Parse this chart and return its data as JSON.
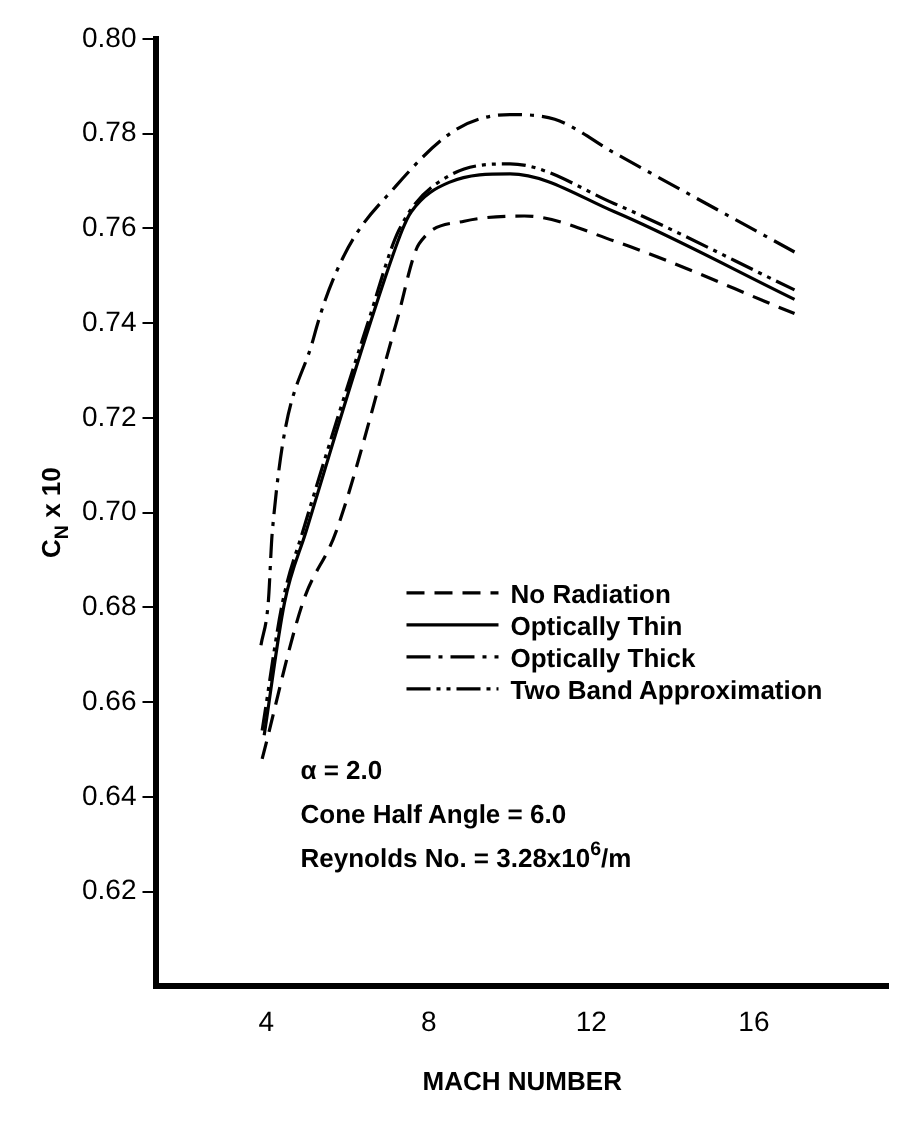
{
  "chart_data": {
    "type": "line",
    "xlabel": "MACH NUMBER",
    "ylabel": "C$_{N}$ x 10",
    "xlim": [
      1.3,
      19.3
    ],
    "xticks": [
      4,
      8,
      12,
      16
    ],
    "ylim": [
      0.6,
      0.8
    ],
    "yticks": [
      0.62,
      0.64,
      0.66,
      0.68,
      {
        "value": 0.7,
        "label": "0.70"
      },
      0.72,
      0.74,
      0.76,
      0.78,
      {
        "value": 0.8,
        "label": "0.80"
      }
    ],
    "grid": false,
    "legend": "bottom right",
    "marker": "none",
    "series": [
      {
        "name": "No Radiation",
        "color": "#000000",
        "line_style": "dashed",
        "x": [
          3.9,
          4.9,
          5.72,
          7.2,
          7.76,
          8.87,
          10.35,
          12.57,
          17.0
        ],
        "values": [
          0.648,
          0.681,
          0.696,
          0.74,
          0.7567,
          0.7615,
          0.7626,
          0.7573,
          0.742
        ]
      },
      {
        "name": "Optically Thin",
        "color": "#000000",
        "line_style": "solid",
        "x": [
          3.95,
          4.45,
          4.98,
          6.56,
          7.35,
          7.57,
          8.5,
          10.0,
          12.57,
          17.0
        ],
        "values": [
          0.653,
          0.681,
          0.696,
          0.74,
          0.7597,
          0.7635,
          0.7697,
          0.7715,
          0.7635,
          0.745
        ]
      },
      {
        "name": "Optically Thick",
        "color": "#000000",
        "line_style": "dashdot",
        "x": [
          3.87,
          4.05,
          4.15,
          5.17,
          5.9,
          7.2,
          8.7,
          10.0,
          11.1,
          12.57,
          17.0
        ],
        "values": [
          0.672,
          0.681,
          0.696,
          0.737,
          0.754,
          0.769,
          0.781,
          0.784,
          0.783,
          0.7759,
          0.755
        ]
      },
      {
        "name": "Two Band Approximation",
        "color": "#000000",
        "line_style": "dashdotdot",
        "x": [
          3.9,
          4.4,
          4.9,
          6.5,
          7.27,
          8.5,
          10.0,
          12.57,
          17.0
        ],
        "values": [
          0.654,
          0.681,
          0.696,
          0.74,
          0.7597,
          0.7711,
          0.7736,
          0.7652,
          0.747
        ]
      }
    ],
    "annotations": [
      "α = 2.0",
      "Cone Half Angle = 6.0",
      "Reynolds No. = 3.28x10$^{6}$/m"
    ]
  }
}
